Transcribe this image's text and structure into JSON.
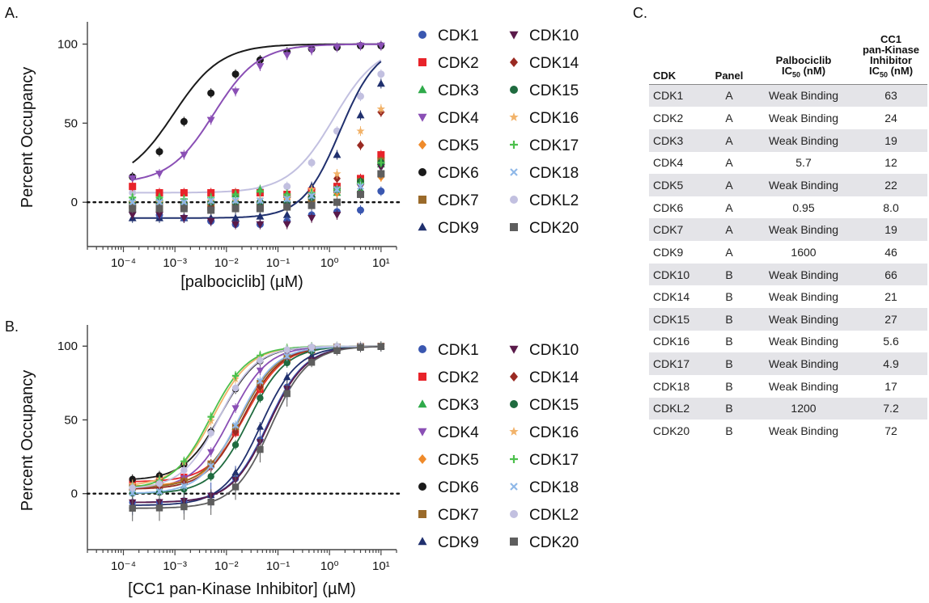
{
  "colors": {
    "CDK1": "#3a57b0",
    "CDK2": "#e8232a",
    "CDK3": "#2faa4a",
    "CDK4": "#8a4fb5",
    "CDK5": "#ef8a2a",
    "CDK6": "#1a1a1a",
    "CDK7": "#9a6a2a",
    "CDK9": "#20306e",
    "CDK10": "#5a1a4a",
    "CDK14": "#9a2a22",
    "CDK15": "#1f6b3f",
    "CDK16": "#f2b36a",
    "CDK17": "#4cc04c",
    "CDK18": "#8fb8e8",
    "CDKL2": "#c2c0e0",
    "CDK20": "#5e5e5e"
  },
  "markers": {
    "CDK1": "circle",
    "CDK2": "square",
    "CDK3": "triangle-up",
    "CDK4": "triangle-down",
    "CDK5": "diamond",
    "CDK6": "circle",
    "CDK7": "square",
    "CDK9": "triangle-up",
    "CDK10": "triangle-down",
    "CDK14": "diamond",
    "CDK15": "circle",
    "CDK16": "star",
    "CDK17": "plus",
    "CDK18": "cross",
    "CDKL2": "circle",
    "CDK20": "square"
  },
  "chart_data": [
    {
      "panel": "A.",
      "type": "scatter",
      "xlabel": "[palbociclib] (µM)",
      "ylabel": "Percent Occupancy",
      "xscale": "log",
      "xlim": [
        2e-05,
        20
      ],
      "ylim": [
        -28,
        110
      ],
      "xticks": [
        0.0001,
        0.001,
        0.01,
        0.1,
        1,
        10
      ],
      "xtick_labels": [
        "10⁻⁴",
        "10⁻³",
        "10⁻²",
        "10⁻¹",
        "10⁰",
        "10¹"
      ],
      "yticks": [
        0,
        50,
        100
      ],
      "ytick_labels": [
        "0",
        "50",
        "100"
      ],
      "zero_line": "dotted",
      "x": [
        0.00015,
        0.0005,
        0.0015,
        0.005,
        0.015,
        0.045,
        0.15,
        0.45,
        1.4,
        4,
        10
      ],
      "legend_columns": [
        [
          "CDK1",
          "CDK2",
          "CDK3",
          "CDK4",
          "CDK5",
          "CDK6",
          "CDK7",
          "CDK9"
        ],
        [
          "CDK10",
          "CDK14",
          "CDK15",
          "CDK16",
          "CDK17",
          "CDK18",
          "CDKL2",
          "CDK20"
        ]
      ],
      "series": [
        {
          "name": "CDK6",
          "values": [
            16,
            32,
            51,
            69,
            81,
            90,
            95,
            97,
            98,
            99,
            99
          ],
          "fit": {
            "bottom": 12,
            "top": 100,
            "ic50": 0.00095,
            "hill": 0.95
          }
        },
        {
          "name": "CDK4",
          "values": [
            15,
            18,
            30,
            52,
            70,
            86,
            93,
            96,
            98,
            99,
            99
          ],
          "fit": {
            "bottom": 12,
            "top": 100,
            "ic50": 0.0057,
            "hill": 1.0
          }
        },
        {
          "name": "CDKL2",
          "values": [
            6,
            6,
            6,
            6,
            6,
            8,
            10,
            25,
            45,
            67,
            81
          ],
          "fit": {
            "bottom": 6,
            "top": 100,
            "ic50": 1.2,
            "hill": 1.0
          }
        },
        {
          "name": "CDK9",
          "values": [
            -10,
            -10,
            -10,
            -10,
            -10,
            -9,
            -8,
            10,
            30,
            55,
            75
          ],
          "fit": {
            "bottom": -10,
            "top": 100,
            "ic50": 1.6,
            "hill": 1.2
          }
        },
        {
          "name": "CDK1",
          "values": [
            -6,
            -8,
            -10,
            -12,
            -14,
            -14,
            -12,
            -8,
            -6,
            -5,
            7
          ]
        },
        {
          "name": "CDK2",
          "values": [
            10,
            6,
            6,
            6,
            6,
            6,
            5,
            7,
            10,
            15,
            30
          ]
        },
        {
          "name": "CDK3",
          "values": [
            2,
            3,
            0,
            2,
            5,
            8,
            5,
            5,
            6,
            8,
            24
          ]
        },
        {
          "name": "CDK5",
          "values": [
            0,
            0,
            -1,
            0,
            0,
            0,
            2,
            2,
            6,
            5,
            16
          ]
        },
        {
          "name": "CDK7",
          "values": [
            -2,
            -2,
            -2,
            -3,
            -3,
            -3,
            -2,
            2,
            8,
            13,
            26
          ]
        },
        {
          "name": "CDK10",
          "values": [
            -8,
            -8,
            -10,
            -12,
            -14,
            -14,
            -14,
            -10,
            -8,
            10,
            22
          ]
        },
        {
          "name": "CDK14",
          "values": [
            -2,
            -2,
            -3,
            -3,
            -2,
            -2,
            -2,
            3,
            15,
            36,
            57
          ]
        },
        {
          "name": "CDK15",
          "values": [
            0,
            0,
            -1,
            0,
            0,
            0,
            0,
            3,
            8,
            13,
            25
          ]
        },
        {
          "name": "CDK16",
          "values": [
            0,
            0,
            1,
            1,
            1,
            2,
            3,
            8,
            18,
            45,
            59
          ]
        },
        {
          "name": "CDK17",
          "values": [
            3,
            3,
            2,
            3,
            5,
            7,
            5,
            6,
            8,
            12,
            25
          ]
        },
        {
          "name": "CDK18",
          "values": [
            0,
            0,
            0,
            1,
            1,
            1,
            2,
            4,
            8,
            10,
            18
          ]
        },
        {
          "name": "CDK20",
          "values": [
            -4,
            -4,
            -4,
            -5,
            -4,
            -4,
            -3,
            -2,
            0,
            5,
            18
          ]
        }
      ]
    },
    {
      "panel": "B.",
      "type": "scatter",
      "xlabel": "[CC1 pan-Kinase Inhibitor] (µM)",
      "ylabel": "Percent Occupancy",
      "xscale": "log",
      "xlim": [
        2e-05,
        20
      ],
      "ylim": [
        -38,
        110
      ],
      "xticks": [
        0.0001,
        0.001,
        0.01,
        0.1,
        1,
        10
      ],
      "xtick_labels": [
        "10⁻⁴",
        "10⁻³",
        "10⁻²",
        "10⁻¹",
        "10⁰",
        "10¹"
      ],
      "yticks": [
        0,
        50,
        100
      ],
      "ytick_labels": [
        "0",
        "50",
        "100"
      ],
      "zero_line": "dotted",
      "x": [
        0.00015,
        0.0005,
        0.0015,
        0.005,
        0.015,
        0.045,
        0.15,
        0.45,
        1.4,
        4,
        10
      ],
      "legend_columns": [
        [
          "CDK1",
          "CDK2",
          "CDK3",
          "CDK4",
          "CDK5",
          "CDK6",
          "CDK7",
          "CDK9"
        ],
        [
          "CDK10",
          "CDK14",
          "CDK15",
          "CDK16",
          "CDK17",
          "CDK18",
          "CDKL2",
          "CDK20"
        ]
      ],
      "series": [
        {
          "name": "CDK1",
          "ic50": 0.063,
          "bottom": -6
        },
        {
          "name": "CDK2",
          "ic50": 0.024,
          "bottom": 8
        },
        {
          "name": "CDK3",
          "ic50": 0.019,
          "bottom": 4
        },
        {
          "name": "CDK4",
          "ic50": 0.012,
          "bottom": 3
        },
        {
          "name": "CDK5",
          "ic50": 0.022,
          "bottom": 5
        },
        {
          "name": "CDK6",
          "ic50": 0.008,
          "bottom": 9
        },
        {
          "name": "CDK7",
          "ic50": 0.019,
          "bottom": 4
        },
        {
          "name": "CDK9",
          "ic50": 0.046,
          "bottom": -8
        },
        {
          "name": "CDK10",
          "ic50": 0.066,
          "bottom": -6
        },
        {
          "name": "CDK14",
          "ic50": 0.021,
          "bottom": 3
        },
        {
          "name": "CDK15",
          "ic50": 0.027,
          "bottom": 0
        },
        {
          "name": "CDK16",
          "ic50": 0.0056,
          "bottom": 5
        },
        {
          "name": "CDK17",
          "ic50": 0.0049,
          "bottom": 3
        },
        {
          "name": "CDK18",
          "ic50": 0.017,
          "bottom": 0
        },
        {
          "name": "CDKL2",
          "ic50": 0.0072,
          "bottom": 3
        },
        {
          "name": "CDK20",
          "ic50": 0.072,
          "bottom": -10
        }
      ]
    }
  ],
  "table": {
    "panel_letter": "C.",
    "header_cdk": "CDK",
    "header_panel": "Panel",
    "header_palbo_line1": "Palbociclib",
    "header_palbo_ic": "IC",
    "header_palbo_sub": "50",
    "header_palbo_unit": "(nM)",
    "header_cc1_line1": "CC1",
    "header_cc1_line2": "pan-Kinase",
    "header_cc1_line3": "Inhibitor",
    "header_cc1_ic": "IC",
    "header_cc1_sub": "50",
    "header_cc1_unit": "(nM)",
    "rows": [
      {
        "cdk": "CDK1",
        "panel": "A",
        "palbo": "Weak Binding",
        "cc1": "63"
      },
      {
        "cdk": "CDK2",
        "panel": "A",
        "palbo": "Weak Binding",
        "cc1": "24"
      },
      {
        "cdk": "CDK3",
        "panel": "A",
        "palbo": "Weak Binding",
        "cc1": "19"
      },
      {
        "cdk": "CDK4",
        "panel": "A",
        "palbo": "5.7",
        "cc1": "12"
      },
      {
        "cdk": "CDK5",
        "panel": "A",
        "palbo": "Weak Binding",
        "cc1": "22"
      },
      {
        "cdk": "CDK6",
        "panel": "A",
        "palbo": "0.95",
        "cc1": "8.0"
      },
      {
        "cdk": "CDK7",
        "panel": "A",
        "palbo": "Weak Binding",
        "cc1": "19"
      },
      {
        "cdk": "CDK9",
        "panel": "A",
        "palbo": "1600",
        "cc1": "46"
      },
      {
        "cdk": "CDK10",
        "panel": "B",
        "palbo": "Weak Binding",
        "cc1": "66"
      },
      {
        "cdk": "CDK14",
        "panel": "B",
        "palbo": "Weak Binding",
        "cc1": "21"
      },
      {
        "cdk": "CDK15",
        "panel": "B",
        "palbo": "Weak Binding",
        "cc1": "27"
      },
      {
        "cdk": "CDK16",
        "panel": "B",
        "palbo": "Weak Binding",
        "cc1": "5.6"
      },
      {
        "cdk": "CDK17",
        "panel": "B",
        "palbo": "Weak Binding",
        "cc1": "4.9"
      },
      {
        "cdk": "CDK18",
        "panel": "B",
        "palbo": "Weak Binding",
        "cc1": "17"
      },
      {
        "cdk": "CDKL2",
        "panel": "B",
        "palbo": "1200",
        "cc1": "7.2"
      },
      {
        "cdk": "CDK20",
        "panel": "B",
        "palbo": "Weak Binding",
        "cc1": "72"
      }
    ]
  }
}
